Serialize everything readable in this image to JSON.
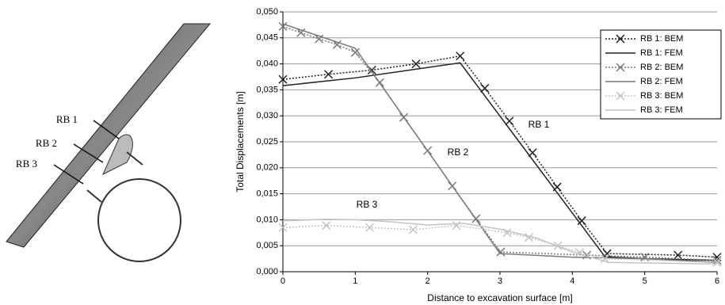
{
  "diagram_labels": [
    "RB 1",
    "RB 2",
    "RB 3"
  ],
  "chart_data": {
    "type": "line",
    "xlabel": "Distance to excavation surface [m]",
    "ylabel": "Total Displacements [m]",
    "xlim": [
      0,
      6
    ],
    "xticks": [
      0,
      1,
      2,
      3,
      4,
      5,
      6
    ],
    "ylim": [
      0,
      0.05
    ],
    "yticks": [
      {
        "value": 0,
        "label": "0,000"
      },
      {
        "value": 0.005,
        "label": "0,005"
      },
      {
        "value": 0.01,
        "label": "0,010"
      },
      {
        "value": 0.015,
        "label": "0,015"
      },
      {
        "value": 0.02,
        "label": "0,020"
      },
      {
        "value": 0.025,
        "label": "0,025"
      },
      {
        "value": 0.03,
        "label": "0,030"
      },
      {
        "value": 0.035,
        "label": "0,035"
      },
      {
        "value": 0.04,
        "label": "0,040"
      },
      {
        "value": 0.045,
        "label": "0,045"
      },
      {
        "value": 0.05,
        "label": "0,050"
      }
    ],
    "grid": true,
    "legend": "upper right",
    "annotations": [
      "RB 1",
      "RB 2",
      "RB 3"
    ],
    "series": [
      {
        "name": "RB 1: BEM",
        "color": "#222222",
        "style": "dotted",
        "marker": "x",
        "x": [
          0,
          0.63,
          1.23,
          1.84,
          2.45,
          2.79,
          3.13,
          3.45,
          3.79,
          4.13,
          4.48,
          5.46,
          6
        ],
        "values": [
          0.037,
          0.038,
          0.0388,
          0.04,
          0.0415,
          0.0353,
          0.029,
          0.0229,
          0.0163,
          0.0098,
          0.0035,
          0.0032,
          0.0028
        ]
      },
      {
        "name": "RB 1: FEM",
        "color": "#222222",
        "style": "solid",
        "x": [
          0,
          1,
          2.45,
          4.45,
          5,
          6
        ],
        "values": [
          0.0358,
          0.0373,
          0.0402,
          0.0029,
          0.0025,
          0.0022
        ]
      },
      {
        "name": "RB 2: BEM",
        "color": "#7a7a7a",
        "style": "dotted",
        "marker": "x",
        "x": [
          0,
          0.25,
          0.5,
          0.75,
          1,
          1.34,
          1.67,
          2,
          2.34,
          2.67,
          3.01,
          4.2,
          5,
          6
        ],
        "values": [
          0.0472,
          0.046,
          0.0448,
          0.0437,
          0.0422,
          0.0364,
          0.0297,
          0.0233,
          0.0165,
          0.0102,
          0.0038,
          0.0032,
          0.0028,
          0.0022
        ]
      },
      {
        "name": "RB 2: FEM",
        "color": "#7a7a7a",
        "style": "solid",
        "x": [
          0,
          1,
          3,
          4,
          5,
          6
        ],
        "values": [
          0.0477,
          0.043,
          0.0035,
          0.0028,
          0.0025,
          0.0018
        ]
      },
      {
        "name": "RB 3: BEM",
        "color": "#c4c4c4",
        "style": "dotted",
        "marker": "x",
        "x": [
          0,
          0.6,
          1.2,
          1.8,
          2.4,
          3.1,
          3.4,
          3.8,
          4.1,
          4.45,
          6
        ],
        "values": [
          0.0085,
          0.0089,
          0.0085,
          0.0081,
          0.0089,
          0.0075,
          0.0066,
          0.005,
          0.0037,
          0.0025,
          0.0018
        ]
      },
      {
        "name": "RB 3: FEM",
        "color": "#c4c4c4",
        "style": "solid",
        "x": [
          0,
          0.6,
          1,
          1.5,
          2,
          2.5,
          3,
          3.5,
          4,
          4.5,
          6
        ],
        "values": [
          0.0098,
          0.0101,
          0.01,
          0.0096,
          0.009,
          0.0093,
          0.0082,
          0.0065,
          0.0038,
          0.0018,
          0.0015
        ]
      }
    ]
  }
}
